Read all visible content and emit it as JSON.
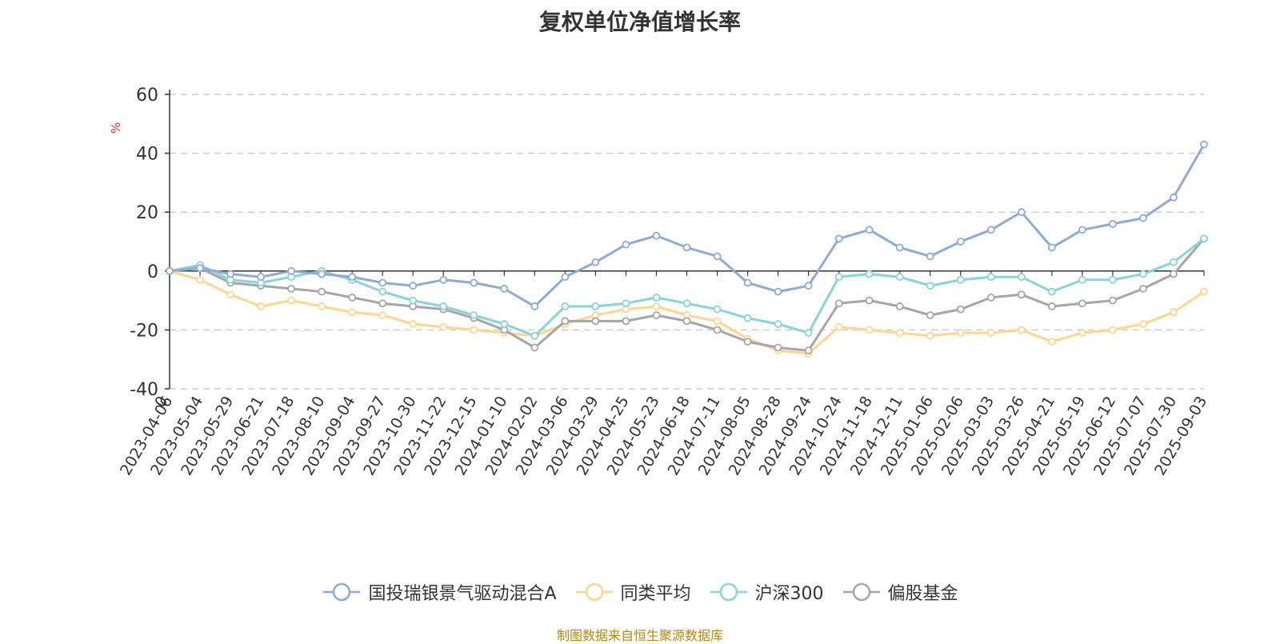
{
  "chart_data": {
    "type": "line",
    "title": "复权单位净值增长率",
    "ylabel": "%",
    "ylim": [
      -40,
      60
    ],
    "yticks": [
      60,
      40,
      20,
      0,
      -20,
      -40
    ],
    "grid": true,
    "legend_position": "bottom",
    "x": [
      "2023-04-06",
      "2023-05-04",
      "2023-05-29",
      "2023-06-21",
      "2023-07-18",
      "2023-08-10",
      "2023-09-04",
      "2023-09-27",
      "2023-10-30",
      "2023-11-22",
      "2023-12-15",
      "2024-01-10",
      "2024-02-02",
      "2024-03-06",
      "2024-03-29",
      "2024-04-25",
      "2024-05-23",
      "2024-06-18",
      "2024-07-11",
      "2024-08-05",
      "2024-08-28",
      "2024-09-24",
      "2024-10-24",
      "2024-11-18",
      "2024-12-11",
      "2025-01-06",
      "2025-02-06",
      "2025-03-03",
      "2025-03-26",
      "2025-04-21",
      "2025-05-19",
      "2025-06-12",
      "2025-07-07",
      "2025-07-30",
      "2025-09-03"
    ],
    "first_tick": "0",
    "series": [
      {
        "name": "国投瑞银景气驱动混合A",
        "color": "#8eaad8",
        "values": [
          0,
          1,
          -1,
          -2,
          0,
          -1,
          -2,
          -4,
          -5,
          -3,
          -4,
          -6,
          -12,
          -2,
          3,
          9,
          12,
          8,
          5,
          -4,
          -7,
          -5,
          11,
          14,
          8,
          5,
          10,
          14,
          20,
          8,
          14,
          16,
          18,
          25,
          43
        ]
      },
      {
        "name": "同类平均",
        "color": "#ffd58f",
        "values": [
          0,
          -3,
          -8,
          -12,
          -10,
          -12,
          -14,
          -15,
          -18,
          -19,
          -20,
          -21,
          -22,
          -18,
          -15,
          -13,
          -12,
          -15,
          -17,
          -23,
          -27,
          -28,
          -19,
          -20,
          -21,
          -22,
          -21,
          -21,
          -20,
          -24,
          -21,
          -20,
          -18,
          -14,
          -7
        ]
      },
      {
        "name": "沪深300",
        "color": "#88d4d8",
        "values": [
          0,
          2,
          -3,
          -4,
          -2,
          0,
          -3,
          -7,
          -10,
          -12,
          -15,
          -18,
          -22,
          -12,
          -12,
          -11,
          -9,
          -11,
          -13,
          -16,
          -18,
          -21,
          -2,
          -1,
          -2,
          -5,
          -3,
          -2,
          -2,
          -7,
          -3,
          -3,
          -1,
          3,
          11
        ]
      },
      {
        "name": "偏股基金",
        "color": "#a6a6a6",
        "values": [
          0,
          1,
          -4,
          -5,
          -6,
          -7,
          -9,
          -11,
          -12,
          -13,
          -16,
          -20,
          -26,
          -17,
          -17,
          -17,
          -15,
          -17,
          -20,
          -24,
          -26,
          -27,
          -11,
          -10,
          -12,
          -15,
          -13,
          -9,
          -8,
          -12,
          -11,
          -10,
          -6,
          -1,
          11
        ]
      }
    ]
  },
  "source_note": "制图数据来自恒生聚源数据库"
}
